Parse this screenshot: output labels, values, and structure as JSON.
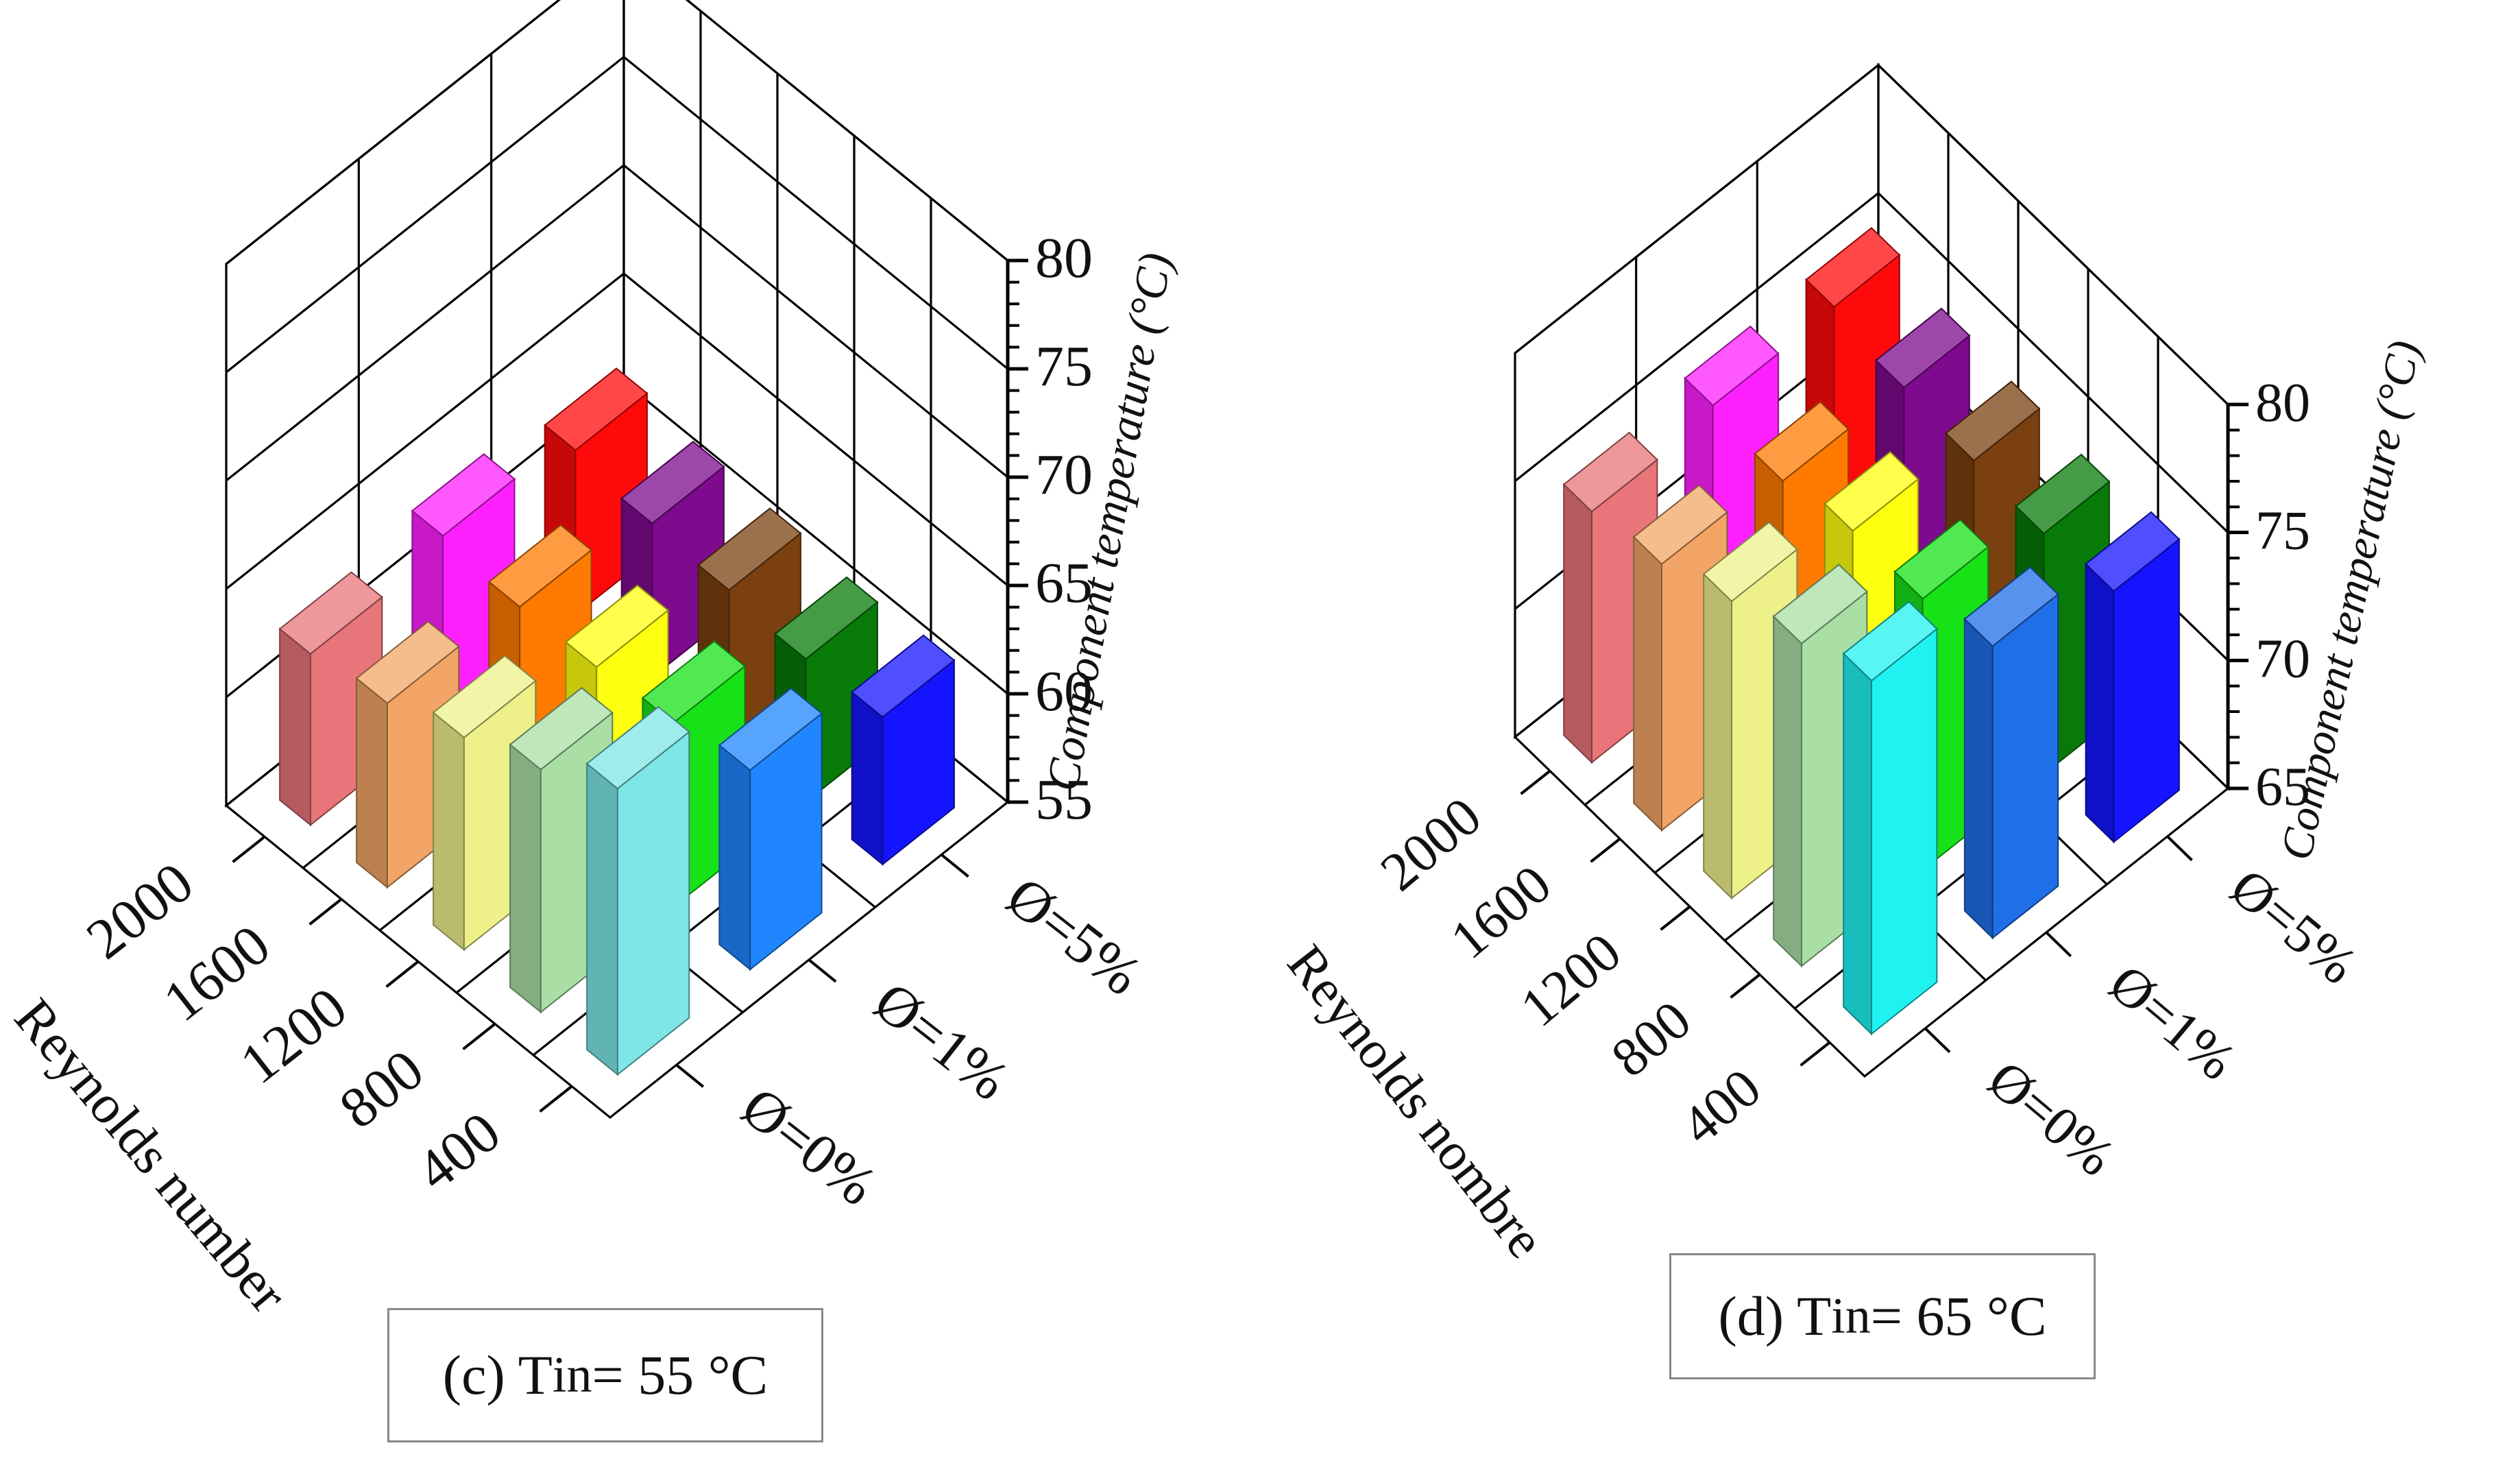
{
  "chart_data": [
    {
      "type": "bar3d",
      "panel": "c",
      "title_prefix": "(c) T",
      "title_sub": "in",
      "title_suffix": "= 55 °C",
      "xlabel": "Reynolds number",
      "ylabel": "Component temperature (°C)",
      "reynolds": [
        "400",
        "800",
        "1200",
        "1600",
        "2000"
      ],
      "phi_labels": [
        "Ø=0%",
        "Ø=1%",
        "Ø=5%"
      ],
      "z_ticks": [
        "55",
        "60",
        "65",
        "70",
        "75",
        "80"
      ],
      "zlim": [
        55,
        80
      ],
      "series": [
        {
          "name": "Ø=0%",
          "colors": [
            "#7ee6e6",
            "#a9dfa5",
            "#eef08a",
            "#f2a566",
            "#e8757a"
          ],
          "values": [
            68.2,
            66.2,
            64.8,
            63.5,
            62.9
          ]
        },
        {
          "name": "Ø=1%",
          "colors": [
            "#1f86ff",
            "#17e217",
            "#ffff10",
            "#ff7a00",
            "#ff20ff"
          ],
          "values": [
            64.2,
            63.5,
            63.2,
            63.1,
            63.5
          ]
        },
        {
          "name": "Ø=5%",
          "colors": [
            "#1414ff",
            "#087a08",
            "#7a4010",
            "#7e0a8e",
            "#ff0a0a"
          ],
          "values": [
            61.8,
            61.6,
            61.9,
            62.1,
            62.6
          ]
        }
      ]
    },
    {
      "type": "bar3d",
      "panel": "d",
      "title_prefix": "(d) T",
      "title_sub": "in",
      "title_suffix": "= 65 °C",
      "xlabel": "Reynolds nombre",
      "ylabel": "Component temperature (°C)",
      "reynolds": [
        "400",
        "800",
        "1200",
        "1600",
        "2000"
      ],
      "phi_labels": [
        "Ø=0%",
        "Ø=1%",
        "Ø=5%"
      ],
      "z_ticks": [
        "65",
        "70",
        "75",
        "80"
      ],
      "zlim": [
        65,
        80
      ],
      "series": [
        {
          "name": "Ø=0%",
          "colors": [
            "#20f2f2",
            "#a9dfa5",
            "#eef08a",
            "#f2a566",
            "#e8757a"
          ],
          "values": [
            78.8,
            77.6,
            76.6,
            75.4,
            74.8
          ]
        },
        {
          "name": "Ø=1%",
          "colors": [
            "#1f6fe8",
            "#17e217",
            "#ffff10",
            "#ff7a00",
            "#ff20ff"
          ],
          "values": [
            76.4,
            75.6,
            75.6,
            74.9,
            75.2
          ]
        },
        {
          "name": "Ø=5%",
          "colors": [
            "#1414ff",
            "#087a08",
            "#7a4010",
            "#7e0a8e",
            "#ff0a0a"
          ],
          "values": [
            74.8,
            74.4,
            74.6,
            74.8,
            75.3
          ]
        }
      ]
    }
  ]
}
